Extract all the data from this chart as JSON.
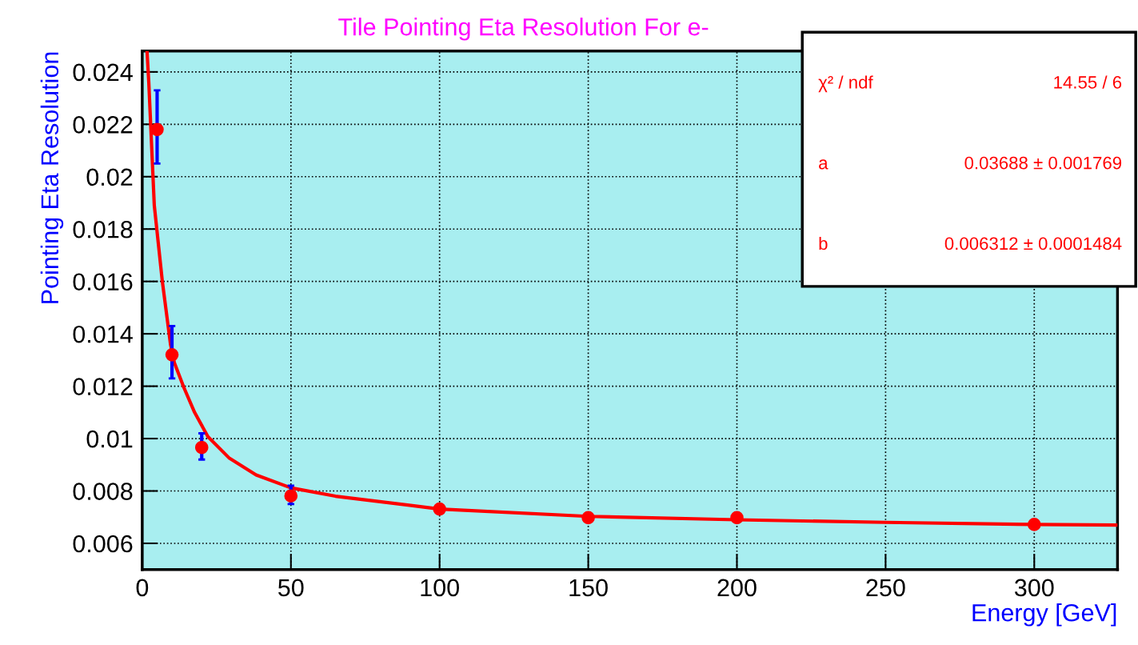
{
  "chart_data": {
    "type": "scatter",
    "title": "Tile Pointing Eta Resolution For e-",
    "xlabel": "Energy [GeV]",
    "ylabel": "Pointing Eta Resolution",
    "series": [
      {
        "color": "#ff0000",
        "x": [
          5,
          10,
          20,
          50,
          100,
          150,
          200,
          300
        ],
        "values": [
          0.0218,
          0.0132,
          0.00966,
          0.00781,
          0.00731,
          0.00698,
          0.00698,
          0.00672
        ],
        "errors": [
          [
            0.0205,
            0.0233
          ],
          [
            0.0123,
            0.0143
          ],
          [
            0.0092,
            0.0102
          ],
          [
            0.0075,
            0.0082
          ],
          null,
          null,
          null,
          null
        ],
        "marker": "circle"
      },
      {
        "type": "line",
        "color": "#ff0000",
        "x": [
          1.6,
          2.2,
          4.05,
          6.76,
          9.5,
          10.8,
          14,
          17.6,
          22.1,
          29.3,
          38.3,
          50,
          65,
          100,
          150,
          200,
          250,
          300,
          328
        ],
        "values": [
          0.0248,
          0.0236,
          0.0189,
          0.016,
          0.0136,
          0.0129,
          0.01195,
          0.011,
          0.01007,
          0.00925,
          0.00861,
          0.00812,
          0.0078,
          0.00731,
          0.00703,
          0.0069,
          0.0068,
          0.00672,
          0.0067
        ],
        "marker": "none"
      }
    ],
    "xlim": [
      0,
      328
    ],
    "ylim": [
      0.005,
      0.0248
    ],
    "xticks": [
      0,
      50,
      100,
      150,
      200,
      250,
      300
    ],
    "yticks": [
      0.006,
      0.008,
      0.01,
      0.012,
      0.014,
      0.016,
      0.018,
      0.02,
      0.022,
      0.024
    ],
    "grid": true,
    "legend": false,
    "annotations": [
      "χ² / ndf",
      "14.55 / 6",
      "a",
      "0.03688 ± 0.001769",
      "b",
      "0.006312 ± 0.0001484"
    ]
  }
}
